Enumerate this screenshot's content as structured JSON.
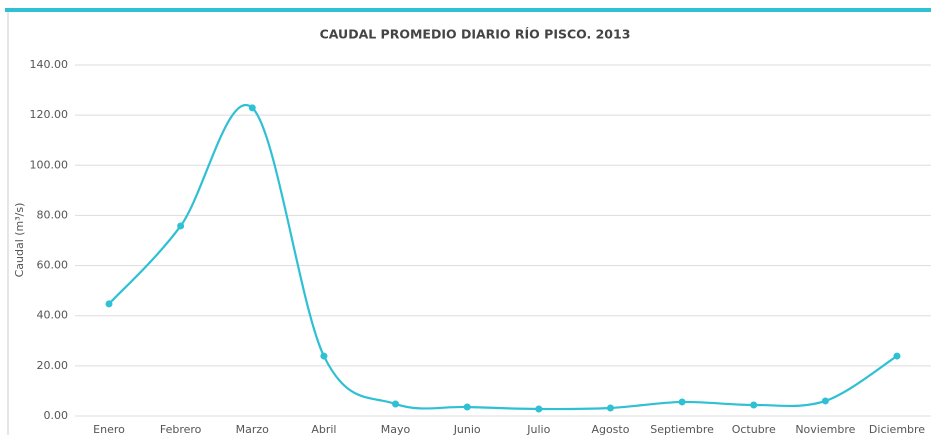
{
  "chart_data": {
    "type": "line",
    "title": "CAUDAL PROMEDIO DIARIO RÍO PISCO. 2013",
    "ylabel": "Caudal (m³/s)",
    "categories": [
      "Enero",
      "Febrero",
      "Marzo",
      "Abril",
      "Mayo",
      "Junio",
      "Julio",
      "Agosto",
      "Septiembre",
      "Octubre",
      "Noviembre",
      "Diciembre"
    ],
    "series": [
      {
        "name": "Caudal",
        "color": "#2fc0d4",
        "values": [
          44.7,
          75.8,
          122.9,
          23.9,
          4.8,
          3.6,
          2.8,
          3.2,
          5.6,
          4.4,
          6.0,
          23.9
        ]
      }
    ],
    "ylim": [
      0,
      140
    ],
    "yticks": [
      {
        "value": 0,
        "label": "0.00"
      },
      {
        "value": 20,
        "label": "20.00"
      },
      {
        "value": 40,
        "label": "40.00"
      },
      {
        "value": 60,
        "label": "60.00"
      },
      {
        "value": 80,
        "label": "80.00"
      },
      {
        "value": 100,
        "label": "100.00"
      },
      {
        "value": 120,
        "label": "120.00"
      },
      {
        "value": 140,
        "label": "140.00"
      }
    ],
    "grid": true,
    "smooth": true
  }
}
